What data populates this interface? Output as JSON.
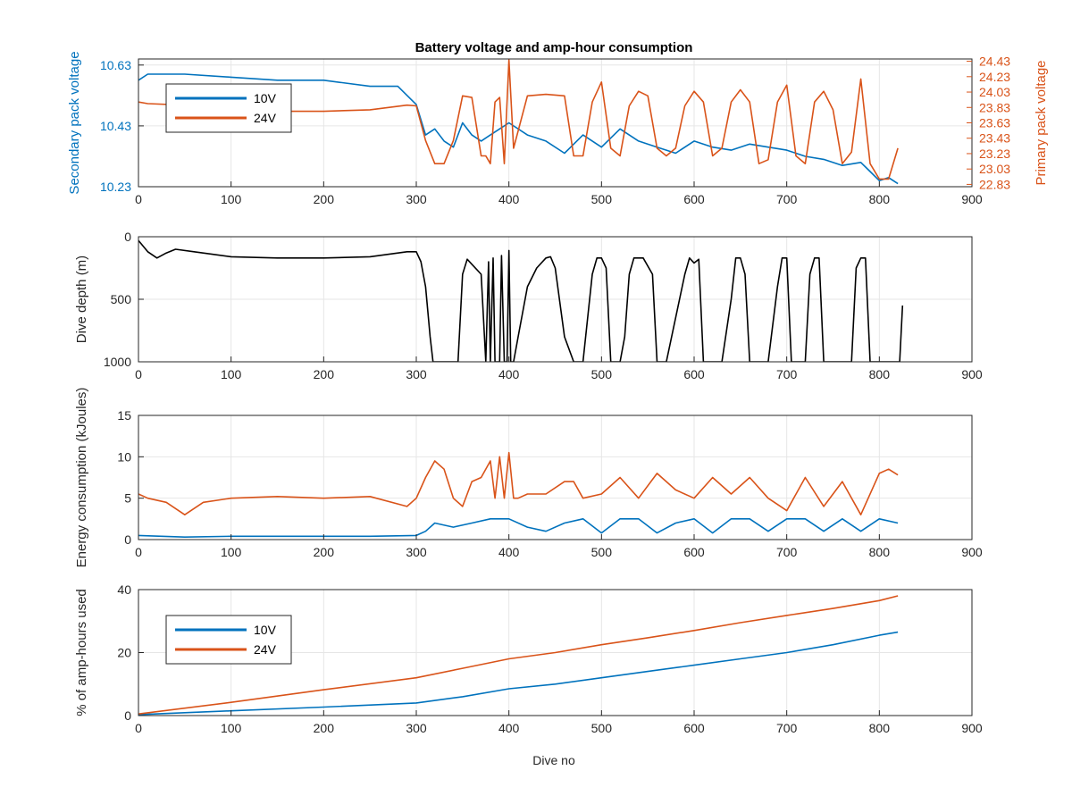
{
  "figure": {
    "title": "Battery voltage and amp-hour consumption",
    "xlabel": "Dive no"
  },
  "colors": {
    "series_10v": "#0072BD",
    "series_24v": "#D95319",
    "depth": "#000000",
    "axis": "#262626",
    "grid": "#E6E6E6"
  },
  "chart_data": [
    {
      "type": "line",
      "title": "Battery voltage and amp-hour consumption",
      "xlabel": "",
      "ylabel": "Secondary pack voltage",
      "ylabel_right": "Primary pack voltage",
      "xlim": [
        0,
        900
      ],
      "xticks": [
        0,
        100,
        200,
        300,
        400,
        500,
        600,
        700,
        800,
        900
      ],
      "ylim": [
        10.23,
        10.65
      ],
      "yticks": [
        10.23,
        10.43,
        10.63
      ],
      "ylim_right": [
        22.8,
        24.46
      ],
      "yticks_right": [
        22.83,
        23.03,
        23.23,
        23.43,
        23.63,
        23.83,
        24.03,
        24.23,
        24.43
      ],
      "grid": true,
      "legend": {
        "position": "top-left",
        "entries": [
          "10V",
          "24V"
        ]
      },
      "series": [
        {
          "name": "10V",
          "axis": "left",
          "color": "#0072BD",
          "x": [
            0,
            10,
            50,
            100,
            150,
            200,
            250,
            280,
            300,
            310,
            320,
            330,
            340,
            350,
            360,
            370,
            380,
            390,
            400,
            420,
            440,
            460,
            480,
            500,
            520,
            540,
            560,
            580,
            600,
            620,
            640,
            660,
            680,
            700,
            720,
            740,
            760,
            780,
            790,
            800,
            810,
            820
          ],
          "y": [
            10.58,
            10.6,
            10.6,
            10.59,
            10.58,
            10.58,
            10.56,
            10.56,
            10.5,
            10.4,
            10.42,
            10.38,
            10.36,
            10.44,
            10.4,
            10.38,
            10.4,
            10.42,
            10.44,
            10.4,
            10.38,
            10.34,
            10.4,
            10.36,
            10.42,
            10.38,
            10.36,
            10.34,
            10.38,
            10.36,
            10.35,
            10.37,
            10.36,
            10.35,
            10.33,
            10.32,
            10.3,
            10.31,
            10.28,
            10.25,
            10.26,
            10.24
          ]
        },
        {
          "name": "24V",
          "axis": "right",
          "color": "#D95319",
          "x": [
            0,
            10,
            50,
            70,
            100,
            150,
            200,
            250,
            290,
            300,
            310,
            320,
            330,
            340,
            350,
            360,
            370,
            375,
            380,
            385,
            390,
            395,
            400,
            405,
            420,
            440,
            460,
            470,
            480,
            490,
            500,
            510,
            520,
            530,
            540,
            550,
            560,
            570,
            580,
            590,
            600,
            610,
            620,
            630,
            640,
            650,
            660,
            670,
            680,
            690,
            700,
            710,
            720,
            730,
            740,
            750,
            760,
            770,
            780,
            790,
            800,
            810,
            820
          ],
          "y": [
            23.9,
            23.88,
            23.86,
            23.85,
            23.78,
            23.78,
            23.78,
            23.8,
            23.86,
            23.85,
            23.4,
            23.1,
            23.1,
            23.4,
            23.98,
            23.96,
            23.2,
            23.2,
            23.1,
            23.9,
            23.96,
            23.1,
            24.45,
            23.3,
            23.98,
            24.0,
            23.98,
            23.2,
            23.2,
            23.9,
            24.16,
            23.3,
            23.2,
            23.85,
            24.04,
            23.98,
            23.3,
            23.2,
            23.3,
            23.85,
            24.04,
            23.9,
            23.2,
            23.3,
            23.9,
            24.06,
            23.9,
            23.1,
            23.15,
            23.9,
            24.12,
            23.2,
            23.1,
            23.9,
            24.04,
            23.8,
            23.1,
            23.25,
            24.2,
            23.1,
            22.9,
            22.9,
            23.3
          ]
        }
      ]
    },
    {
      "type": "line",
      "xlabel": "",
      "ylabel": "Dive depth (m)",
      "xlim": [
        0,
        900
      ],
      "xticks": [
        0,
        100,
        200,
        300,
        400,
        500,
        600,
        700,
        800,
        900
      ],
      "ylim": [
        0,
        1000
      ],
      "y_reversed": true,
      "yticks": [
        0,
        500,
        1000
      ],
      "grid": true,
      "series": [
        {
          "color": "#000000",
          "x": [
            0,
            10,
            20,
            30,
            40,
            60,
            100,
            150,
            200,
            250,
            290,
            300,
            305,
            310,
            315,
            318,
            320,
            345,
            350,
            355,
            360,
            370,
            375,
            378,
            380,
            383,
            385,
            390,
            392,
            395,
            398,
            400,
            402,
            405,
            410,
            420,
            430,
            440,
            445,
            450,
            460,
            470,
            475,
            480,
            490,
            495,
            500,
            505,
            510,
            520,
            525,
            530,
            535,
            545,
            555,
            560,
            565,
            570,
            590,
            595,
            600,
            605,
            610,
            620,
            630,
            640,
            645,
            650,
            655,
            660,
            670,
            680,
            690,
            695,
            700,
            705,
            710,
            720,
            725,
            730,
            735,
            740,
            750,
            770,
            775,
            780,
            785,
            790,
            800,
            805,
            810,
            815,
            820,
            822,
            825
          ],
          "y": [
            30,
            120,
            170,
            130,
            100,
            120,
            160,
            170,
            170,
            160,
            120,
            120,
            200,
            400,
            800,
            1000,
            1000,
            1000,
            300,
            180,
            220,
            300,
            1000,
            200,
            1000,
            170,
            1000,
            1000,
            150,
            1000,
            1000,
            110,
            1000,
            1000,
            800,
            400,
            250,
            170,
            160,
            250,
            800,
            1000,
            1000,
            1000,
            300,
            170,
            170,
            250,
            1000,
            1000,
            800,
            300,
            170,
            170,
            300,
            1000,
            1000,
            1000,
            300,
            170,
            210,
            180,
            1000,
            1000,
            1000,
            500,
            170,
            170,
            300,
            1000,
            1000,
            1000,
            400,
            170,
            170,
            1000,
            1000,
            1000,
            300,
            170,
            170,
            1000,
            1000,
            1000,
            250,
            170,
            170,
            1000,
            1000,
            1000,
            1000,
            1000,
            1000,
            1000,
            550
          ]
        }
      ]
    },
    {
      "type": "line",
      "xlabel": "",
      "ylabel": "Energy consumption (kJoules)",
      "xlim": [
        0,
        900
      ],
      "xticks": [
        0,
        100,
        200,
        300,
        400,
        500,
        600,
        700,
        800,
        900
      ],
      "ylim": [
        0,
        15
      ],
      "yticks": [
        0,
        5,
        10,
        15
      ],
      "grid": true,
      "series": [
        {
          "name": "24V",
          "color": "#D95319",
          "x": [
            0,
            10,
            30,
            50,
            70,
            100,
            150,
            200,
            250,
            290,
            300,
            310,
            320,
            330,
            340,
            350,
            360,
            370,
            380,
            385,
            390,
            395,
            400,
            405,
            410,
            420,
            440,
            460,
            470,
            480,
            500,
            520,
            540,
            560,
            580,
            600,
            620,
            640,
            660,
            680,
            700,
            720,
            740,
            760,
            780,
            800,
            810,
            820
          ],
          "y": [
            5.5,
            5.0,
            4.5,
            3.0,
            4.5,
            5.0,
            5.2,
            5.0,
            5.2,
            4.0,
            5.0,
            7.5,
            9.5,
            8.5,
            5.0,
            4.0,
            7.0,
            7.5,
            9.5,
            5.0,
            10.0,
            5.0,
            10.5,
            5.0,
            5.0,
            5.5,
            5.5,
            7.0,
            7.0,
            5.0,
            5.5,
            7.5,
            5.0,
            8.0,
            6.0,
            5.0,
            7.5,
            5.5,
            7.5,
            5.0,
            3.5,
            7.5,
            4.0,
            7.0,
            3.0,
            8.0,
            8.5,
            7.8
          ]
        },
        {
          "name": "10V",
          "color": "#0072BD",
          "x": [
            0,
            50,
            100,
            150,
            200,
            250,
            300,
            310,
            320,
            340,
            360,
            380,
            400,
            420,
            440,
            460,
            480,
            500,
            520,
            540,
            560,
            580,
            600,
            620,
            640,
            660,
            680,
            700,
            720,
            740,
            760,
            780,
            800,
            820
          ],
          "y": [
            0.5,
            0.3,
            0.4,
            0.4,
            0.4,
            0.4,
            0.5,
            1.0,
            2.0,
            1.5,
            2.0,
            2.5,
            2.5,
            1.5,
            1.0,
            2.0,
            2.5,
            0.8,
            2.5,
            2.5,
            0.8,
            2.0,
            2.5,
            0.8,
            2.5,
            2.5,
            1.0,
            2.5,
            2.5,
            1.0,
            2.5,
            1.0,
            2.5,
            2.0
          ]
        }
      ]
    },
    {
      "type": "line",
      "xlabel": "Dive no",
      "ylabel": "% of amp-hours used",
      "xlim": [
        0,
        900
      ],
      "xticks": [
        0,
        100,
        200,
        300,
        400,
        500,
        600,
        700,
        800,
        900
      ],
      "ylim": [
        0,
        40
      ],
      "yticks": [
        0,
        20,
        40
      ],
      "grid": true,
      "legend": {
        "position": "top-left",
        "entries": [
          "10V",
          "24V"
        ]
      },
      "series": [
        {
          "name": "10V",
          "color": "#0072BD",
          "x": [
            0,
            100,
            200,
            300,
            350,
            400,
            450,
            500,
            550,
            600,
            650,
            700,
            750,
            800,
            820
          ],
          "y": [
            0.3,
            1.5,
            2.7,
            4.0,
            6.0,
            8.5,
            10.0,
            12.0,
            14.0,
            16.0,
            18.0,
            20.0,
            22.5,
            25.5,
            26.5
          ]
        },
        {
          "name": "24V",
          "color": "#D95319",
          "x": [
            0,
            100,
            200,
            300,
            350,
            400,
            450,
            500,
            550,
            600,
            650,
            700,
            750,
            800,
            820
          ],
          "y": [
            0.5,
            4.2,
            8.2,
            12.0,
            15.0,
            18.0,
            20.0,
            22.5,
            24.7,
            27.0,
            29.5,
            31.8,
            34.0,
            36.5,
            38.0
          ]
        }
      ]
    }
  ]
}
